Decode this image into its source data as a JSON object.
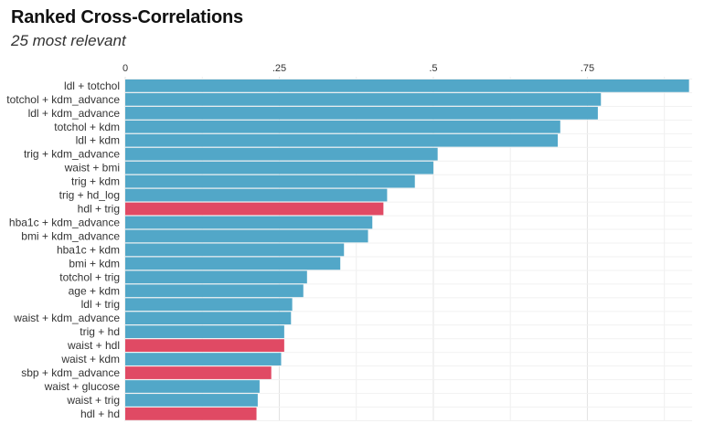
{
  "chart_data": {
    "type": "bar",
    "orientation": "horizontal",
    "title": "Ranked Cross-Correlations",
    "subtitle": "25 most relevant",
    "xlabel": "",
    "ylabel": "",
    "xlim": [
      0,
      0.92
    ],
    "x_ticks": [
      0,
      0.25,
      0.5,
      0.75
    ],
    "x_tick_labels": [
      "0",
      ".25",
      ".5",
      ".75"
    ],
    "x_axis_position": "top",
    "grid": true,
    "colors": {
      "positive": "#52a7c8",
      "negative": "#e04a64"
    },
    "categories": [
      "ldl + totchol",
      "totchol + kdm_advance",
      "ldl + kdm_advance",
      "totchol + kdm",
      "ldl + kdm",
      "trig + kdm_advance",
      "waist + bmi",
      "trig + kdm",
      "trig + hd_log",
      "hdl + trig",
      "hba1c + kdm_advance",
      "bmi + kdm_advance",
      "hba1c + kdm",
      "bmi + kdm",
      "totchol + trig",
      "age + kdm",
      "ldl + trig",
      "waist + kdm_advance",
      "trig + hd",
      "waist + hdl",
      "waist + kdm",
      "sbp + kdm_advance",
      "waist + glucose",
      "waist + trig",
      "hdl + hd"
    ],
    "values": [
      0.915,
      0.772,
      0.767,
      0.706,
      0.702,
      0.507,
      0.5,
      0.47,
      0.425,
      0.419,
      0.401,
      0.394,
      0.355,
      0.349,
      0.295,
      0.289,
      0.271,
      0.269,
      0.258,
      0.258,
      0.253,
      0.237,
      0.218,
      0.215,
      0.213
    ],
    "signs": [
      "positive",
      "positive",
      "positive",
      "positive",
      "positive",
      "positive",
      "positive",
      "positive",
      "positive",
      "negative",
      "positive",
      "positive",
      "positive",
      "positive",
      "positive",
      "positive",
      "positive",
      "positive",
      "positive",
      "negative",
      "positive",
      "negative",
      "positive",
      "positive",
      "negative"
    ]
  }
}
